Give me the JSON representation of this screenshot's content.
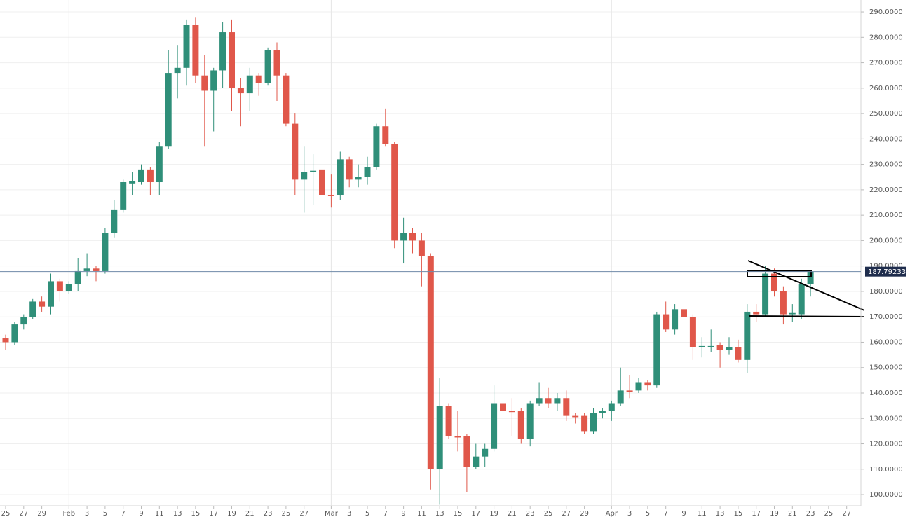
{
  "chart_data": {
    "type": "candlestick",
    "x": [
      "01-25",
      "01-26",
      "01-27",
      "01-28",
      "01-29",
      "01-30",
      "01-31",
      "02-01",
      "02-02",
      "02-03",
      "02-04",
      "02-05",
      "02-06",
      "02-07",
      "02-08",
      "02-09",
      "02-10",
      "02-11",
      "02-12",
      "02-13",
      "02-14",
      "02-15",
      "02-16",
      "02-17",
      "02-18",
      "02-19",
      "02-20",
      "02-21",
      "02-22",
      "02-23",
      "02-24",
      "02-25",
      "02-26",
      "02-27",
      "02-28",
      "02-29",
      "03-01",
      "03-02",
      "03-03",
      "03-04",
      "03-05",
      "03-06",
      "03-07",
      "03-08",
      "03-09",
      "03-10",
      "03-11",
      "03-12",
      "03-13",
      "03-14",
      "03-15",
      "03-16",
      "03-17",
      "03-18",
      "03-19",
      "03-20",
      "03-21",
      "03-22",
      "03-23",
      "03-24",
      "03-25",
      "03-26",
      "03-27",
      "03-28",
      "03-29",
      "03-30",
      "03-31",
      "04-01",
      "04-02",
      "04-03",
      "04-04",
      "04-05",
      "04-06",
      "04-07",
      "04-08",
      "04-09",
      "04-10",
      "04-11",
      "04-12",
      "04-13",
      "04-14",
      "04-15",
      "04-16",
      "04-17",
      "04-18",
      "04-19",
      "04-20",
      "04-21",
      "04-22",
      "04-23"
    ],
    "open": [
      161.5,
      160,
      167,
      170,
      176,
      174,
      184,
      180,
      183,
      188,
      189,
      188,
      203,
      212,
      222.5,
      223,
      228,
      223,
      237,
      266,
      268,
      285,
      265,
      259,
      267,
      282,
      260,
      258,
      265,
      262,
      275,
      265,
      246,
      224,
      227,
      228,
      218,
      218,
      232,
      224,
      225,
      229,
      245,
      238,
      200,
      203,
      200,
      194,
      110,
      135,
      123,
      123,
      111,
      115,
      118,
      136,
      133,
      133,
      122,
      136,
      138,
      136,
      138,
      131,
      131,
      125,
      132,
      133,
      136,
      141,
      141,
      144,
      143,
      171,
      165,
      173,
      170,
      158,
      158,
      159,
      157,
      158,
      153,
      172,
      171,
      187,
      180,
      171,
      171,
      183
    ],
    "high": [
      163,
      168,
      171,
      177,
      178,
      187,
      185,
      184,
      193,
      195,
      190,
      205,
      216,
      224,
      227,
      230,
      229,
      239,
      275,
      277,
      287,
      288,
      273,
      268,
      286,
      287,
      264,
      268,
      266,
      276,
      278,
      266,
      250,
      237,
      234,
      233,
      226,
      235,
      233,
      230,
      233,
      246,
      252,
      239,
      209,
      205,
      203,
      195,
      146,
      136,
      133,
      124,
      120,
      120,
      143,
      153,
      138,
      134,
      137,
      144,
      142,
      140,
      141,
      132,
      132,
      134,
      134,
      137,
      150,
      147,
      146,
      145,
      172,
      176,
      175,
      174,
      171,
      162,
      165,
      160,
      162,
      161,
      175,
      175,
      190,
      189,
      182,
      175,
      185,
      188
    ],
    "low": [
      157,
      159,
      165,
      169,
      172,
      171,
      176,
      179,
      180,
      186,
      184,
      187,
      201,
      211,
      218,
      222,
      218,
      218,
      236,
      256,
      261,
      262,
      237,
      243,
      260,
      251,
      245,
      251,
      257,
      261,
      255,
      245,
      218,
      211,
      214,
      218,
      213,
      216,
      221,
      221,
      222,
      228,
      237,
      197,
      191,
      195,
      182,
      102,
      96,
      122,
      117,
      101,
      110,
      111,
      117,
      126,
      123,
      120,
      119,
      135,
      134,
      133,
      129,
      128,
      124,
      124,
      130,
      129,
      135,
      138,
      140,
      141,
      142,
      164,
      163,
      168,
      153,
      154,
      156,
      150,
      155,
      152,
      148,
      168,
      170,
      178,
      167,
      168,
      169,
      178
    ],
    "close": [
      160,
      167,
      170,
      176,
      174,
      184,
      180,
      183,
      188,
      189,
      188,
      203,
      212,
      223,
      223.5,
      228,
      223,
      237,
      266,
      268,
      285,
      265,
      259,
      267,
      282,
      260,
      258,
      265,
      262,
      275,
      265,
      246,
      224,
      227,
      227.5,
      218,
      217.5,
      232,
      224,
      225,
      229,
      245,
      238,
      200,
      203,
      200,
      194,
      110,
      135,
      123,
      122.5,
      111,
      115,
      118,
      136,
      133,
      132.5,
      122,
      136,
      138,
      136,
      138,
      131,
      130.5,
      125,
      132,
      133,
      136,
      141,
      140.5,
      144,
      143,
      171,
      165,
      173,
      170,
      158,
      158.5,
      158.5,
      157,
      158,
      153,
      172,
      171,
      187,
      180,
      171,
      171.5,
      183,
      187.8
    ],
    "up_color": "#2f8f79",
    "down_color": "#e0574a",
    "ylim": [
      95.6,
      294.7
    ],
    "yticks": [
      {
        "value": 100,
        "label": "100.0000"
      },
      {
        "value": 110,
        "label": "110.0000"
      },
      {
        "value": 120,
        "label": "120.0000"
      },
      {
        "value": 130,
        "label": "130.0000"
      },
      {
        "value": 140,
        "label": "140.0000"
      },
      {
        "value": 150,
        "label": "150.0000"
      },
      {
        "value": 160,
        "label": "160.0000"
      },
      {
        "value": 170,
        "label": "170.0000"
      },
      {
        "value": 180,
        "label": "180.0000"
      },
      {
        "value": 190,
        "label": "190.0000"
      },
      {
        "value": 200,
        "label": "200.0000"
      },
      {
        "value": 210,
        "label": "210.0000"
      },
      {
        "value": 220,
        "label": "220.0000"
      },
      {
        "value": 230,
        "label": "230.0000"
      },
      {
        "value": 240,
        "label": "240.0000"
      },
      {
        "value": 250,
        "label": "250.0000"
      },
      {
        "value": 260,
        "label": "260.0000"
      },
      {
        "value": 270,
        "label": "270.0000"
      },
      {
        "value": 280,
        "label": "280.0000"
      },
      {
        "value": 290,
        "label": "290.0000"
      }
    ],
    "xticks": [
      {
        "value": "01-25",
        "label": "25"
      },
      {
        "value": "01-27",
        "label": "27"
      },
      {
        "value": "01-29",
        "label": "29"
      },
      {
        "value": "02-01",
        "label": "Feb"
      },
      {
        "value": "02-03",
        "label": "3"
      },
      {
        "value": "02-05",
        "label": "5"
      },
      {
        "value": "02-07",
        "label": "7"
      },
      {
        "value": "02-09",
        "label": "9"
      },
      {
        "value": "02-11",
        "label": "11"
      },
      {
        "value": "02-13",
        "label": "13"
      },
      {
        "value": "02-15",
        "label": "15"
      },
      {
        "value": "02-17",
        "label": "17"
      },
      {
        "value": "02-19",
        "label": "19"
      },
      {
        "value": "02-21",
        "label": "21"
      },
      {
        "value": "02-23",
        "label": "23"
      },
      {
        "value": "02-25",
        "label": "25"
      },
      {
        "value": "02-27",
        "label": "27"
      },
      {
        "value": "03-01",
        "label": "Mar"
      },
      {
        "value": "03-03",
        "label": "3"
      },
      {
        "value": "03-05",
        "label": "5"
      },
      {
        "value": "03-07",
        "label": "7"
      },
      {
        "value": "03-09",
        "label": "9"
      },
      {
        "value": "03-11",
        "label": "11"
      },
      {
        "value": "03-13",
        "label": "13"
      },
      {
        "value": "03-15",
        "label": "15"
      },
      {
        "value": "03-17",
        "label": "17"
      },
      {
        "value": "03-19",
        "label": "19"
      },
      {
        "value": "03-21",
        "label": "21"
      },
      {
        "value": "03-23",
        "label": "23"
      },
      {
        "value": "03-25",
        "label": "25"
      },
      {
        "value": "03-27",
        "label": "27"
      },
      {
        "value": "03-29",
        "label": "29"
      },
      {
        "value": "04-01",
        "label": "Apr"
      },
      {
        "value": "04-03",
        "label": "3"
      },
      {
        "value": "04-05",
        "label": "5"
      },
      {
        "value": "04-07",
        "label": "7"
      },
      {
        "value": "04-09",
        "label": "9"
      },
      {
        "value": "04-11",
        "label": "11"
      },
      {
        "value": "04-13",
        "label": "13"
      },
      {
        "value": "04-15",
        "label": "15"
      },
      {
        "value": "04-17",
        "label": "17"
      },
      {
        "value": "04-19",
        "label": "19"
      },
      {
        "value": "04-21",
        "label": "21"
      },
      {
        "value": "04-23",
        "label": "23"
      },
      {
        "value": "04-25",
        "label": "25"
      },
      {
        "value": "04-27",
        "label": "27"
      }
    ],
    "last_price": 187.79233,
    "grid": true
  }
}
